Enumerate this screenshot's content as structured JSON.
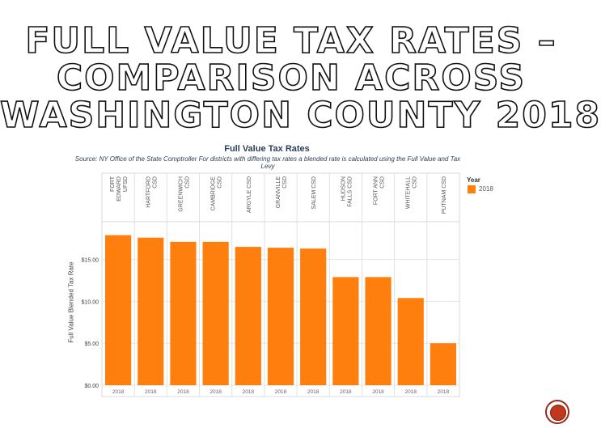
{
  "slide": {
    "title_lines": [
      "FULL VALUE TAX RATES –",
      "COMPARISON ACROSS",
      "WASHINGTON COUNTY 2018"
    ]
  },
  "legend": {
    "title": "Year",
    "label": "2018",
    "color": "#ff7f0e"
  },
  "chart_data": {
    "type": "bar",
    "title": "Full Value Tax Rates",
    "subtitle": "Source: NY Office of the State Comptroller For districts with differing tax rates a blended rate is calculated using the Full Value and Tax Levy",
    "xlabel": "",
    "ylabel": "Full Value Blended Tax Rate",
    "categories": [
      [
        "FORT",
        "EDWARD",
        "UFSD"
      ],
      [
        "HARTFORD",
        "CSD"
      ],
      [
        "GREENWICH",
        "CSD"
      ],
      [
        "CAMBRIDGE",
        "CSD"
      ],
      [
        "ARGYLE CSD"
      ],
      [
        "GRANVILLE",
        "CSD"
      ],
      [
        "SALEM CSD"
      ],
      [
        "HUDSON",
        "FALLS CSD"
      ],
      [
        "FORT ANN",
        "CSD"
      ],
      [
        "WHITEHALL",
        "CSD"
      ],
      [
        "PUTNAM CSD"
      ]
    ],
    "year_labels": [
      "2018",
      "2018",
      "2018",
      "2018",
      "2018",
      "2018",
      "2018",
      "2018",
      "2018",
      "2018",
      "2018"
    ],
    "values": [
      17.9,
      17.6,
      17.1,
      17.1,
      16.5,
      16.4,
      16.3,
      12.9,
      12.9,
      10.4,
      5.0
    ],
    "yticks": [
      0,
      5,
      10,
      15
    ],
    "ytick_labels": [
      "$0.00",
      "$5.00",
      "$10.00",
      "$15.00"
    ],
    "ylim": [
      0,
      19.5
    ],
    "grid": true,
    "legend_position": "right"
  }
}
